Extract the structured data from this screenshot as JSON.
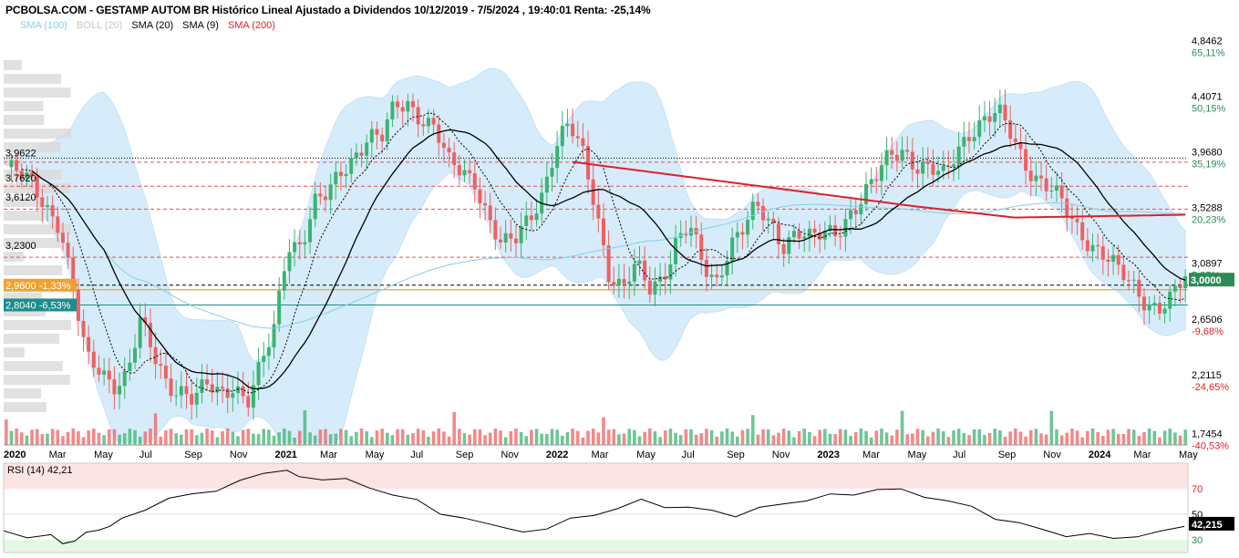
{
  "title": "PCBOLSA.COM - GESTAMP AUTOM BR Histórico Lineal Ajustado a Dividendos 10/12/2019 - 7/5/2024 , 19:40:01 Renta: -25,14%",
  "legend": [
    {
      "label": "SMA (100)",
      "color": "#87CEEB"
    },
    {
      "label": "BOLL (20)",
      "color": "#C8C8C8"
    },
    {
      "label": "SMA (20)",
      "color": "#000000"
    },
    {
      "label": "SMA (9)",
      "color": "#000000"
    },
    {
      "label": "SMA (200)",
      "color": "#E0202A"
    }
  ],
  "colors": {
    "up": "#3CB371",
    "down": "#F06060",
    "boll": "#D6ECFA",
    "sma200": "#E0202A",
    "sma100": "#87CEEB"
  },
  "chart_data": {
    "type": "candlestick",
    "y_scale": "linear",
    "ylim": [
      1.7,
      4.95
    ],
    "x_labels": [
      "2020",
      "Mar",
      "May",
      "Jul",
      "Sep",
      "Nov",
      "2021",
      "Mar",
      "May",
      "Jul",
      "Sep",
      "Nov",
      "2022",
      "Mar",
      "May",
      "Jul",
      "Sep",
      "Nov",
      "2023",
      "Mar",
      "May",
      "Jul",
      "Sep",
      "Nov",
      "2024",
      "Mar",
      "May"
    ],
    "x_labels_bold": [
      "2020",
      "2021",
      "2022",
      "2023",
      "2024"
    ],
    "right_price_ticks": [
      {
        "price": "4,8462",
        "pct": "65,11%",
        "pct_color": "#2E8B57"
      },
      {
        "price": "4,4071",
        "pct": "50,15%",
        "pct_color": "#2E8B57"
      },
      {
        "price": "3,9680",
        "pct": "35,19%",
        "pct_color": "#2E8B57"
      },
      {
        "price": "3,5288",
        "pct": "20,23%",
        "pct_color": "#2E8B57"
      },
      {
        "price": "3,0897",
        "pct": "5,27%",
        "pct_color": "#2E8B57"
      },
      {
        "price": "2,6506",
        "pct": "-9,68%",
        "pct_color": "#E0202A"
      },
      {
        "price": "2,2115",
        "pct": "-24,65%",
        "pct_color": "#E0202A"
      },
      {
        "price": "1,7454",
        "pct": "-40,53%",
        "pct_color": "#E0202A"
      }
    ],
    "right_price_values": [
      4.8462,
      4.4071,
      3.968,
      3.5288,
      3.0897,
      2.6506,
      2.2115,
      1.7454
    ],
    "level_lines": [
      {
        "label": "3,9622",
        "value": 3.9622,
        "style": "dotted-black"
      },
      {
        "label": "3,7620",
        "value": 3.762,
        "style": "none"
      },
      {
        "label": "3,6120",
        "value": 3.612,
        "style": "none"
      },
      {
        "label": "3,2300",
        "value": 3.23,
        "style": "none"
      },
      {
        "label": "2,9600 -1,33%",
        "value": 2.96,
        "style": "dashed-orange"
      },
      {
        "label": "2,8040 -6,53%",
        "value": 2.804,
        "style": "teal"
      }
    ],
    "last_price": {
      "label": "3,0000",
      "value": 3.0
    },
    "dashed_red_levels": [
      3.93,
      3.74,
      3.56,
      3.18
    ],
    "close_points": [
      [
        0.0,
        3.89
      ],
      [
        0.02,
        3.74
      ],
      [
        0.04,
        3.45
      ],
      [
        0.05,
        2.9
      ],
      [
        0.06,
        2.35
      ],
      [
        0.07,
        2.3
      ],
      [
        0.08,
        2.2
      ],
      [
        0.09,
        2.25
      ],
      [
        0.1,
        2.65
      ],
      [
        0.11,
        2.4
      ],
      [
        0.12,
        2.2
      ],
      [
        0.13,
        2.15
      ],
      [
        0.14,
        2.05
      ],
      [
        0.15,
        2.15
      ],
      [
        0.16,
        2.1
      ],
      [
        0.17,
        2.2
      ],
      [
        0.18,
        2.05
      ],
      [
        0.19,
        2.3
      ],
      [
        0.2,
        2.6
      ],
      [
        0.21,
        3.3
      ],
      [
        0.22,
        3.3
      ],
      [
        0.23,
        3.6
      ],
      [
        0.24,
        3.65
      ],
      [
        0.25,
        3.85
      ],
      [
        0.26,
        4.0
      ],
      [
        0.27,
        4.15
      ],
      [
        0.28,
        4.1
      ],
      [
        0.29,
        4.35
      ],
      [
        0.3,
        4.4
      ],
      [
        0.31,
        4.3
      ],
      [
        0.32,
        4.2
      ],
      [
        0.33,
        3.9
      ],
      [
        0.34,
        3.85
      ],
      [
        0.35,
        3.8
      ],
      [
        0.36,
        3.5
      ],
      [
        0.37,
        3.25
      ],
      [
        0.38,
        3.3
      ],
      [
        0.39,
        3.5
      ],
      [
        0.4,
        3.7
      ],
      [
        0.41,
        4.05
      ],
      [
        0.42,
        4.2
      ],
      [
        0.43,
        4.0
      ],
      [
        0.44,
        3.6
      ],
      [
        0.45,
        3.05
      ],
      [
        0.46,
        2.9
      ],
      [
        0.47,
        3.1
      ],
      [
        0.48,
        2.95
      ],
      [
        0.49,
        3.05
      ],
      [
        0.5,
        3.3
      ],
      [
        0.51,
        3.4
      ],
      [
        0.52,
        3.1
      ],
      [
        0.53,
        3.0
      ],
      [
        0.54,
        3.3
      ],
      [
        0.55,
        3.4
      ],
      [
        0.56,
        3.55
      ],
      [
        0.57,
        3.45
      ],
      [
        0.58,
        3.3
      ],
      [
        0.59,
        3.4
      ],
      [
        0.6,
        3.3
      ],
      [
        0.61,
        3.35
      ],
      [
        0.62,
        3.4
      ],
      [
        0.63,
        3.55
      ],
      [
        0.64,
        3.65
      ],
      [
        0.65,
        3.8
      ],
      [
        0.66,
        4.0
      ],
      [
        0.67,
        4.05
      ],
      [
        0.68,
        3.9
      ],
      [
        0.69,
        3.85
      ],
      [
        0.7,
        3.8
      ],
      [
        0.71,
        4.05
      ],
      [
        0.72,
        4.2
      ],
      [
        0.73,
        4.25
      ],
      [
        0.74,
        4.3
      ],
      [
        0.75,
        4.15
      ],
      [
        0.76,
        3.95
      ],
      [
        0.77,
        3.8
      ],
      [
        0.78,
        3.7
      ],
      [
        0.79,
        3.55
      ],
      [
        0.8,
        3.4
      ],
      [
        0.81,
        3.3
      ],
      [
        0.82,
        3.2
      ],
      [
        0.83,
        3.05
      ],
      [
        0.84,
        2.95
      ],
      [
        0.85,
        2.85
      ],
      [
        0.86,
        2.8
      ],
      [
        0.87,
        2.85
      ],
      [
        0.88,
        3.0
      ]
    ],
    "rsi": {
      "label": "RSI (14)",
      "value": "42,21",
      "last_tag": "42,215",
      "levels": [
        70,
        50,
        30
      ],
      "level_labels": [
        "70",
        "50",
        "30"
      ],
      "ylim": [
        20,
        90
      ],
      "points": [
        [
          0.0,
          37
        ],
        [
          0.02,
          33
        ],
        [
          0.04,
          32
        ],
        [
          0.05,
          28
        ],
        [
          0.06,
          30
        ],
        [
          0.07,
          34
        ],
        [
          0.08,
          38
        ],
        [
          0.09,
          42
        ],
        [
          0.1,
          45
        ],
        [
          0.12,
          55
        ],
        [
          0.14,
          62
        ],
        [
          0.16,
          65
        ],
        [
          0.18,
          70
        ],
        [
          0.2,
          75
        ],
        [
          0.22,
          82
        ],
        [
          0.24,
          86
        ],
        [
          0.25,
          80
        ],
        [
          0.27,
          78
        ],
        [
          0.29,
          76
        ],
        [
          0.31,
          72
        ],
        [
          0.33,
          65
        ],
        [
          0.35,
          60
        ],
        [
          0.37,
          52
        ],
        [
          0.39,
          46
        ],
        [
          0.41,
          42
        ],
        [
          0.43,
          40
        ],
        [
          0.44,
          36
        ],
        [
          0.46,
          40
        ],
        [
          0.48,
          45
        ],
        [
          0.5,
          50
        ],
        [
          0.52,
          55
        ],
        [
          0.54,
          60
        ],
        [
          0.56,
          57
        ],
        [
          0.58,
          55
        ],
        [
          0.6,
          52
        ],
        [
          0.62,
          50
        ],
        [
          0.64,
          54
        ],
        [
          0.66,
          58
        ],
        [
          0.68,
          62
        ],
        [
          0.7,
          64
        ],
        [
          0.72,
          66
        ],
        [
          0.74,
          70
        ],
        [
          0.76,
          68
        ],
        [
          0.78,
          65
        ],
        [
          0.8,
          60
        ],
        [
          0.82,
          55
        ],
        [
          0.84,
          48
        ],
        [
          0.86,
          42
        ],
        [
          0.88,
          38
        ],
        [
          0.9,
          34
        ],
        [
          0.92,
          33
        ],
        [
          0.94,
          32
        ],
        [
          0.96,
          33
        ],
        [
          0.98,
          35
        ],
        [
          1.0,
          42.2
        ]
      ]
    }
  }
}
